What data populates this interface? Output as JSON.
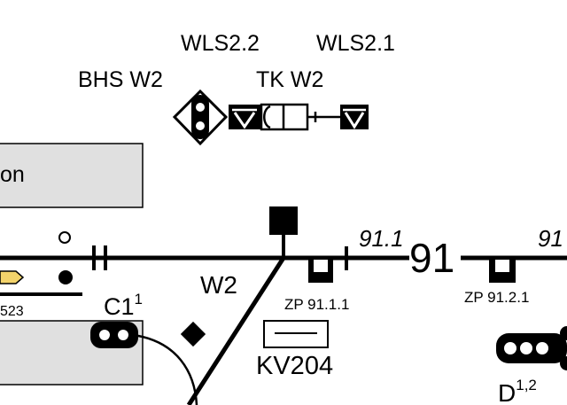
{
  "labels": {
    "wls22": "WLS2.2",
    "wls21": "WLS2.1",
    "bhs_w2": "BHS W2",
    "tk_w2": "TK W2",
    "platform_text": "on",
    "track_91_1": "91.1",
    "track_91": "91",
    "track_91_right": "91",
    "w2": "W2",
    "zp_9111": "ZP 91.1.1",
    "zp_9121": "ZP 91.2.1",
    "kv204": "KV204",
    "signal_c1": "C1",
    "signal_c1_sup": "1",
    "signal_d": "D",
    "signal_d_sup": "1,2",
    "left_code": "523"
  },
  "colors": {
    "line": "#000000",
    "platform_fill": "#e0e0e0",
    "marker_fill": "#f3d36b"
  }
}
